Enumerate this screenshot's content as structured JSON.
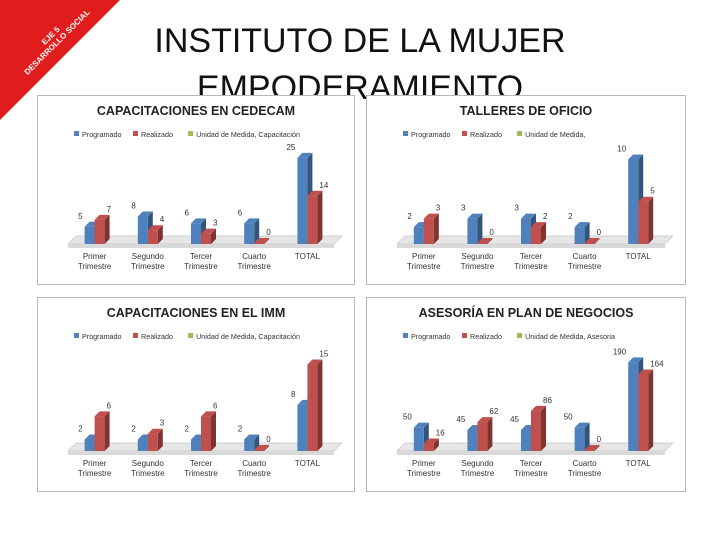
{
  "slide": {
    "title_line1": "INSTITUTO DE LA MUJER",
    "title_line2": "EMPODERAMIENTO",
    "corner_line1": "EJE 5",
    "corner_line2": "DESARROLLO SOCIAL"
  },
  "colors": {
    "programado": "#4f81bd",
    "realizado": "#c0504d",
    "unidad": "#9bbb59",
    "corner": "#e01c1c"
  },
  "chart_data": [
    {
      "type": "bar",
      "title": "CAPACITACIONES EN CEDECAM",
      "categories": [
        "Primer Trimestre",
        "Segundo Trimestre",
        "Tercer Trimestre",
        "Cuarto Trimestre",
        "TOTAL"
      ],
      "series": [
        {
          "name": "Programado",
          "values": [
            5,
            8,
            6,
            6,
            25
          ]
        },
        {
          "name": "Realizado",
          "values": [
            7,
            4,
            3,
            0,
            14
          ]
        }
      ],
      "legend_extra": "Unidad de Medida, Capacitación",
      "ylim": [
        0,
        27
      ],
      "legend": "top-left"
    },
    {
      "type": "bar",
      "title": "TALLERES DE OFICIO",
      "categories": [
        "Primer Trimestre",
        "Segundo Trimestre",
        "Tercer Trimestre",
        "Cuarto Trimestre",
        "TOTAL"
      ],
      "series": [
        {
          "name": "Programado",
          "values": [
            2,
            3,
            3,
            2,
            10
          ]
        },
        {
          "name": "Realizado",
          "values": [
            3,
            0,
            2,
            0,
            5
          ]
        }
      ],
      "legend_extra": "Unidad de Medida,",
      "ylim": [
        0,
        11
      ],
      "legend": "top-left"
    },
    {
      "type": "bar",
      "title": "CAPACITACIONES EN EL IMM",
      "categories": [
        "Primer Trimestre",
        "Segundo Trimestre",
        "Tercer Trimestre",
        "Cuarto Trimestre",
        "TOTAL"
      ],
      "series": [
        {
          "name": "Programado",
          "values": [
            2,
            2,
            2,
            2,
            8
          ]
        },
        {
          "name": "Realizado",
          "values": [
            6,
            3,
            6,
            0,
            15
          ]
        }
      ],
      "legend_extra": "Unidad de Medida, Capacitación",
      "ylim": [
        0,
        17
      ],
      "legend": "top-left"
    },
    {
      "type": "bar",
      "title": "ASESORÍA EN PLAN DE NEGOCIOS",
      "categories": [
        "Primer Trimestre",
        "Segundo Trimestre",
        "Tercer Trimestre",
        "Cuarto Trimestre",
        "TOTAL"
      ],
      "series": [
        {
          "name": "Programado",
          "values": [
            50,
            45,
            45,
            50,
            190
          ]
        },
        {
          "name": "Realizado",
          "values": [
            16,
            62,
            86,
            0,
            164
          ]
        }
      ],
      "legend_extra": "Unidad de Medida, Asesoria",
      "ylim": [
        0,
        210
      ],
      "legend": "top-left"
    }
  ]
}
